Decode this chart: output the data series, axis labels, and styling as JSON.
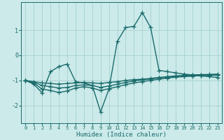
{
  "xlabel": "Humidex (Indice chaleur)",
  "background_color": "#cceaea",
  "grid_color": "#aad4d4",
  "line_color": "#1a6b6b",
  "xlim": [
    -0.5,
    23.5
  ],
  "ylim": [
    -2.7,
    2.1
  ],
  "xticks": [
    0,
    1,
    2,
    3,
    4,
    5,
    6,
    7,
    8,
    9,
    10,
    11,
    12,
    13,
    14,
    15,
    16,
    17,
    18,
    19,
    20,
    21,
    22,
    23
  ],
  "yticks": [
    -2,
    -1,
    0,
    1
  ],
  "lines": [
    {
      "x": [
        0,
        1,
        2,
        3,
        4,
        5,
        6,
        7,
        8,
        9,
        10,
        11,
        12,
        13,
        14,
        15,
        16,
        17,
        18,
        19,
        20,
        21,
        22,
        23
      ],
      "y": [
        -1.0,
        -1.15,
        -1.5,
        -0.65,
        -0.45,
        -0.35,
        -1.05,
        -1.1,
        -1.2,
        -2.25,
        -1.35,
        0.55,
        1.1,
        1.15,
        1.7,
        1.1,
        -0.6,
        -0.65,
        -0.7,
        -0.75,
        -0.78,
        -0.82,
        -0.85,
        -0.88
      ]
    },
    {
      "x": [
        0,
        1,
        2,
        3,
        4,
        5,
        6,
        7,
        8,
        9,
        10,
        11,
        12,
        13,
        14,
        15,
        16,
        17,
        18,
        19,
        20,
        21,
        22,
        23
      ],
      "y": [
        -1.0,
        -1.05,
        -1.1,
        -1.12,
        -1.15,
        -1.12,
        -1.1,
        -1.08,
        -1.1,
        -1.12,
        -1.08,
        -1.05,
        -1.0,
        -0.97,
        -0.95,
        -0.92,
        -0.88,
        -0.85,
        -0.82,
        -0.8,
        -0.78,
        -0.77,
        -0.76,
        -0.75
      ]
    },
    {
      "x": [
        0,
        1,
        2,
        3,
        4,
        5,
        6,
        7,
        8,
        9,
        10,
        11,
        12,
        13,
        14,
        15,
        16,
        17,
        18,
        19,
        20,
        21,
        22,
        23
      ],
      "y": [
        -1.0,
        -1.08,
        -1.2,
        -1.25,
        -1.3,
        -1.28,
        -1.2,
        -1.18,
        -1.2,
        -1.28,
        -1.22,
        -1.15,
        -1.08,
        -1.02,
        -0.98,
        -0.94,
        -0.9,
        -0.87,
        -0.84,
        -0.82,
        -0.8,
        -0.79,
        -0.78,
        -0.77
      ]
    },
    {
      "x": [
        0,
        1,
        2,
        3,
        4,
        5,
        6,
        7,
        8,
        9,
        10,
        11,
        12,
        13,
        14,
        15,
        16,
        17,
        18,
        19,
        20,
        21,
        22,
        23
      ],
      "y": [
        -1.0,
        -1.1,
        -1.35,
        -1.4,
        -1.48,
        -1.42,
        -1.3,
        -1.25,
        -1.3,
        -1.4,
        -1.33,
        -1.25,
        -1.17,
        -1.1,
        -1.05,
        -1.0,
        -0.95,
        -0.91,
        -0.87,
        -0.85,
        -0.83,
        -0.81,
        -0.8,
        -0.79
      ]
    }
  ],
  "marker": "+",
  "markersize": 4,
  "linewidth": 1.0
}
